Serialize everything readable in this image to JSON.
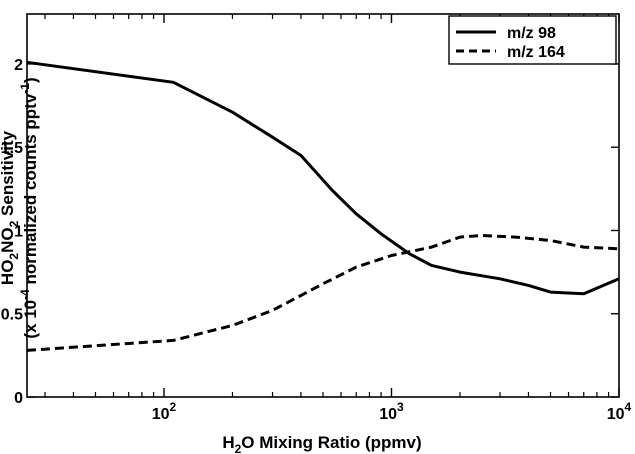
{
  "chart_data": {
    "type": "line",
    "title": "",
    "xscale": "log",
    "xlim": [
      25,
      10000
    ],
    "ylim": [
      0,
      2.3
    ],
    "grid": false,
    "legend": "top-right",
    "xlabel": {
      "pre": "H",
      "sub": "2",
      "post": "O Mixing Ratio (ppmv)"
    },
    "ylabel_line1": {
      "a": "HO",
      "s1": "2",
      "b": "NO",
      "s2": "2",
      "c": " Sensitivity"
    },
    "ylabel_line2": {
      "a": "(x 10",
      "sup1": "-4",
      "b": " normalized counts pptv",
      "sup2": "-1",
      "c": ")"
    },
    "x_ticks": [
      {
        "value": 100,
        "base": "10",
        "exp": "2"
      },
      {
        "value": 1000,
        "base": "10",
        "exp": "3"
      },
      {
        "value": 10000,
        "base": "10",
        "exp": "4"
      }
    ],
    "y_ticks": [
      {
        "value": 0,
        "label": "0"
      },
      {
        "value": 0.5,
        "label": "0.5"
      },
      {
        "value": 1,
        "label": "1"
      },
      {
        "value": 1.5,
        "label": "1.5"
      },
      {
        "value": 2,
        "label": "2"
      }
    ],
    "series": [
      {
        "name": "m/z 98",
        "dash": "solid",
        "points": [
          [
            25,
            2.01
          ],
          [
            110,
            1.89
          ],
          [
            200,
            1.71
          ],
          [
            300,
            1.56
          ],
          [
            400,
            1.45
          ],
          [
            550,
            1.24
          ],
          [
            700,
            1.1
          ],
          [
            900,
            0.98
          ],
          [
            1200,
            0.86
          ],
          [
            1500,
            0.79
          ],
          [
            2000,
            0.75
          ],
          [
            3000,
            0.71
          ],
          [
            4000,
            0.67
          ],
          [
            5000,
            0.63
          ],
          [
            7000,
            0.62
          ],
          [
            10000,
            0.71
          ]
        ]
      },
      {
        "name": "m/z 164",
        "dash": "dashed",
        "points": [
          [
            25,
            0.28
          ],
          [
            110,
            0.34
          ],
          [
            200,
            0.43
          ],
          [
            300,
            0.52
          ],
          [
            400,
            0.61
          ],
          [
            500,
            0.68
          ],
          [
            700,
            0.78
          ],
          [
            1000,
            0.85
          ],
          [
            1500,
            0.9
          ],
          [
            2000,
            0.96
          ],
          [
            2500,
            0.97
          ],
          [
            3500,
            0.96
          ],
          [
            5000,
            0.94
          ],
          [
            7000,
            0.9
          ],
          [
            10000,
            0.89
          ]
        ]
      }
    ]
  }
}
